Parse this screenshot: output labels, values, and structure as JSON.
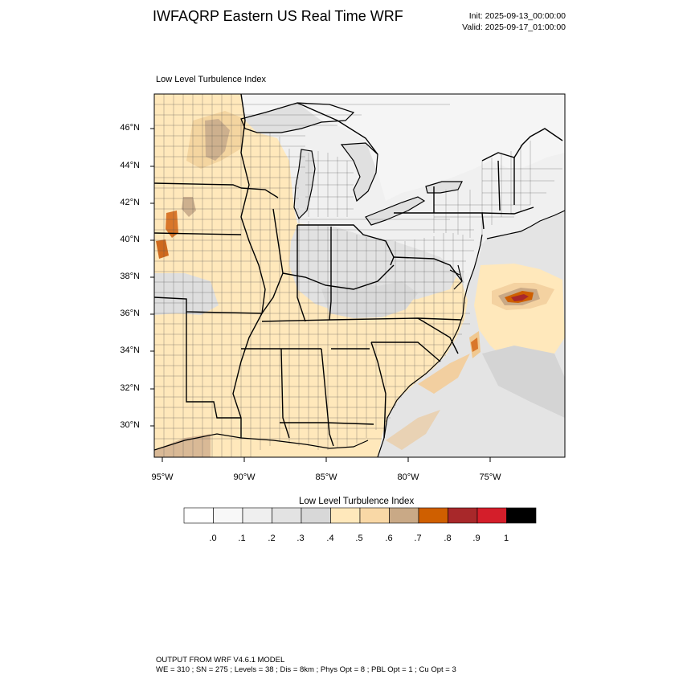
{
  "header": {
    "title": "IWFAQRP Eastern US Real Time WRF",
    "init": "Init: 2025-09-13_00:00:00",
    "valid": "Valid: 2025-09-17_01:00:00"
  },
  "panel": {
    "title": "Low Level Turbulence Index"
  },
  "map": {
    "lat_labels": [
      "46°N",
      "44°N",
      "42°N",
      "40°N",
      "38°N",
      "36°N",
      "34°N",
      "32°N",
      "30°N"
    ],
    "lon_labels": [
      "95°W",
      "90°W",
      "85°W",
      "80°W",
      "75°W"
    ],
    "land_base_color": "#f0f0f0",
    "water_color": "#e6e6e6"
  },
  "colorbar": {
    "title": "Low Level Turbulence Index",
    "colors": [
      "#ffffff",
      "#f8f8f8",
      "#efefef",
      "#e3e3e3",
      "#d8d8d8",
      "#ffe8bb",
      "#f9d8a6",
      "#c9a986",
      "#cf5f00",
      "#a8282a",
      "#d41e2a",
      "#000000"
    ],
    "labels": [
      ".0",
      ".1",
      ".2",
      ".3",
      ".4",
      ".5",
      ".6",
      ".7",
      ".8",
      ".9",
      "1"
    ]
  },
  "footer": {
    "line1": "OUTPUT FROM WRF V4.6.1 MODEL",
    "line2": "WE = 310 ; SN = 275 ; Levels = 38 ; Dis = 8km ; Phys Opt = 8 ; PBL Opt = 1 ; Cu Opt = 3"
  }
}
